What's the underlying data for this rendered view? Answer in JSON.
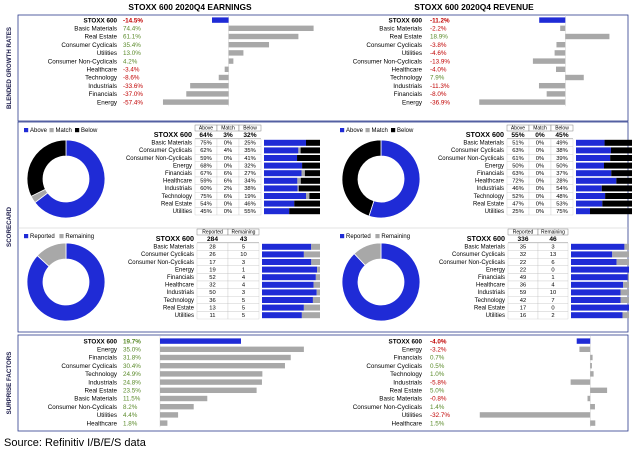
{
  "earnings_title": "STOXX 600 2020Q4 EARNINGS",
  "revenue_title": "STOXX 600 2020Q4 REVENUE",
  "section_labels": {
    "growth": "BLENDED GROWTH RATES",
    "scorecard": "SCORECARD",
    "surprise": "SURPRISE FACTORS"
  },
  "source": "Source: Refinitiv I/B/E/S data",
  "colors": {
    "blue": "#1f2bd6",
    "gray": "#a8a8a8",
    "black": "#000000",
    "positive": "#5a8a2a",
    "negative": "#c00000",
    "border": "#2b3a8c"
  },
  "legend_above_match_below": [
    "Above",
    "Match",
    "Below"
  ],
  "legend_reported_remaining": [
    "Reported",
    "Remaining"
  ],
  "chart_data": [
    {
      "id": "earnings_growth",
      "type": "bar",
      "title": "STOXX 600 2020Q4 EARNINGS",
      "categories": [
        "STOXX 600",
        "Basic Materials",
        "Real Estate",
        "Consumer Cyclicals",
        "Utilities",
        "Consumer Non-Cyclicals",
        "Healthcare",
        "Technology",
        "Industrials",
        "Financials",
        "Energy"
      ],
      "values": [
        -14.5,
        74.4,
        61.1,
        35.4,
        13.0,
        4.2,
        -3.4,
        -8.6,
        -33.6,
        -37.0,
        -57.4
      ],
      "labels": [
        "-14.5%",
        "74.4%",
        "61.1%",
        "35.4%",
        "13.0%",
        "4.2%",
        "-3.4%",
        "-8.6%",
        "-33.6%",
        "-37.0%",
        "-57.4%"
      ]
    },
    {
      "id": "revenue_growth",
      "type": "bar",
      "title": "STOXX 600 2020Q4 REVENUE",
      "categories": [
        "STOXX 600",
        "Basic Materials",
        "Real Estate",
        "Consumer Cyclicals",
        "Utilities",
        "Consumer Non-Cyclicals",
        "Healthcare",
        "Technology",
        "Industrials",
        "Financials",
        "Energy"
      ],
      "values": [
        -11.2,
        -2.2,
        18.9,
        -3.8,
        -4.6,
        -13.9,
        -4.0,
        7.9,
        -11.3,
        -8.0,
        -36.9
      ],
      "labels": [
        "-11.2%",
        "-2.2%",
        "18.9%",
        "-3.8%",
        "-4.6%",
        "-13.9%",
        "-4.0%",
        "7.9%",
        "-11.3%",
        "-8.0%",
        "-36.9%"
      ]
    },
    {
      "id": "earnings_scorecard",
      "type": "table",
      "headers": [
        "Above",
        "Match",
        "Below"
      ],
      "total_label": "STOXX 600",
      "total": [
        "64%",
        "3%",
        "32%"
      ],
      "rows": [
        {
          "name": "Basic Materials",
          "above": 75,
          "match": 0,
          "below": 25
        },
        {
          "name": "Consumer Cyclicals",
          "above": 62,
          "match": 4,
          "below": 35
        },
        {
          "name": "Consumer Non-Cyclicals",
          "above": 59,
          "match": 0,
          "below": 41
        },
        {
          "name": "Energy",
          "above": 68,
          "match": 0,
          "below": 32
        },
        {
          "name": "Financials",
          "above": 67,
          "match": 6,
          "below": 27
        },
        {
          "name": "Healthcare",
          "above": 59,
          "match": 6,
          "below": 34
        },
        {
          "name": "Industrials",
          "above": 60,
          "match": 2,
          "below": 38
        },
        {
          "name": "Technology",
          "above": 75,
          "match": 6,
          "below": 19
        },
        {
          "name": "Real Estate",
          "above": 54,
          "match": 0,
          "below": 46
        },
        {
          "name": "Utilities",
          "above": 45,
          "match": 0,
          "below": 55
        }
      ]
    },
    {
      "id": "earnings_donut_beats",
      "type": "pie",
      "categories": [
        "Above",
        "Match",
        "Below"
      ],
      "values": [
        64,
        3,
        32
      ]
    },
    {
      "id": "revenue_scorecard",
      "type": "table",
      "headers": [
        "Above",
        "Match",
        "Below"
      ],
      "total_label": "STOXX 600",
      "total": [
        "55%",
        "0%",
        "45%"
      ],
      "rows": [
        {
          "name": "Basic Materials",
          "above": 51,
          "match": 0,
          "below": 49
        },
        {
          "name": "Consumer Cyclicals",
          "above": 63,
          "match": 0,
          "below": 38
        },
        {
          "name": "Consumer Non-Cyclicals",
          "above": 61,
          "match": 0,
          "below": 39
        },
        {
          "name": "Energy",
          "above": 50,
          "match": 0,
          "below": 50
        },
        {
          "name": "Financials",
          "above": 63,
          "match": 0,
          "below": 37
        },
        {
          "name": "Healthcare",
          "above": 72,
          "match": 0,
          "below": 28
        },
        {
          "name": "Industrials",
          "above": 46,
          "match": 0,
          "below": 54
        },
        {
          "name": "Technology",
          "above": 52,
          "match": 0,
          "below": 48
        },
        {
          "name": "Real Estate",
          "above": 47,
          "match": 0,
          "below": 53
        },
        {
          "name": "Utilities",
          "above": 25,
          "match": 0,
          "below": 75
        }
      ]
    },
    {
      "id": "revenue_donut_beats",
      "type": "pie",
      "categories": [
        "Above",
        "Match",
        "Below"
      ],
      "values": [
        55,
        0,
        45
      ]
    },
    {
      "id": "earnings_reported",
      "type": "table",
      "headers": [
        "Reported",
        "Remaining"
      ],
      "total_label": "STOXX 600",
      "total": [
        284,
        43
      ],
      "rows": [
        {
          "name": "Basic Materials",
          "reported": 28,
          "remaining": 5
        },
        {
          "name": "Consumer Cyclicals",
          "reported": 26,
          "remaining": 10
        },
        {
          "name": "Consumer Non-Cyclicals",
          "reported": 17,
          "remaining": 3
        },
        {
          "name": "Energy",
          "reported": 19,
          "remaining": 1
        },
        {
          "name": "Financials",
          "reported": 52,
          "remaining": 4
        },
        {
          "name": "Healthcare",
          "reported": 32,
          "remaining": 4
        },
        {
          "name": "Industrials",
          "reported": 50,
          "remaining": 3
        },
        {
          "name": "Technology",
          "reported": 36,
          "remaining": 5
        },
        {
          "name": "Real Estate",
          "reported": 13,
          "remaining": 5
        },
        {
          "name": "Utilities",
          "reported": 11,
          "remaining": 5
        }
      ]
    },
    {
      "id": "earnings_donut_reported",
      "type": "pie",
      "categories": [
        "Reported",
        "Remaining"
      ],
      "values": [
        284,
        43
      ]
    },
    {
      "id": "revenue_reported",
      "type": "table",
      "headers": [
        "Reported",
        "Remaining"
      ],
      "total_label": "STOXX 600",
      "total": [
        336,
        46
      ],
      "rows": [
        {
          "name": "Basic Materials",
          "reported": 35,
          "remaining": 3
        },
        {
          "name": "Consumer Cyclicals",
          "reported": 32,
          "remaining": 13
        },
        {
          "name": "Consumer Non-Cyclicals",
          "reported": 22,
          "remaining": 6
        },
        {
          "name": "Energy",
          "reported": 22,
          "remaining": 0
        },
        {
          "name": "Financials",
          "reported": 49,
          "remaining": 1
        },
        {
          "name": "Healthcare",
          "reported": 36,
          "remaining": 4
        },
        {
          "name": "Industrials",
          "reported": 59,
          "remaining": 10
        },
        {
          "name": "Technology",
          "reported": 42,
          "remaining": 7
        },
        {
          "name": "Real Estate",
          "reported": 17,
          "remaining": 0
        },
        {
          "name": "Utilities",
          "reported": 16,
          "remaining": 2
        }
      ]
    },
    {
      "id": "revenue_donut_reported",
      "type": "pie",
      "categories": [
        "Reported",
        "Remaining"
      ],
      "values": [
        336,
        46
      ]
    },
    {
      "id": "earnings_surprise",
      "type": "bar",
      "categories": [
        "STOXX 600",
        "Energy",
        "Financials",
        "Consumer Cyclicals",
        "Technology",
        "Industrials",
        "Real Estate",
        "Basic Materials",
        "Consumer Non-Cyclicals",
        "Utilities",
        "Healthcare"
      ],
      "values": [
        19.7,
        35.0,
        31.8,
        30.4,
        24.9,
        24.8,
        23.5,
        11.5,
        8.2,
        4.4,
        1.8
      ],
      "labels": [
        "19.7%",
        "35.0%",
        "31.8%",
        "30.4%",
        "24.9%",
        "24.8%",
        "23.5%",
        "11.5%",
        "8.2%",
        "4.4%",
        "1.8%"
      ]
    },
    {
      "id": "revenue_surprise",
      "type": "bar",
      "categories": [
        "STOXX 600",
        "Energy",
        "Financials",
        "Consumer Cyclicals",
        "Technology",
        "Industrials",
        "Real Estate",
        "Basic Materials",
        "Consumer Non-Cyclicals",
        "Utilities",
        "Healthcare"
      ],
      "values": [
        -4.0,
        -3.2,
        0.7,
        0.5,
        1.0,
        -5.8,
        5.0,
        -0.8,
        1.4,
        -32.7,
        1.5
      ],
      "labels": [
        "-4.0%",
        "-3.2%",
        "0.7%",
        "0.5%",
        "1.0%",
        "-5.8%",
        "5.0%",
        "-0.8%",
        "1.4%",
        "-32.7%",
        "1.5%"
      ]
    }
  ]
}
